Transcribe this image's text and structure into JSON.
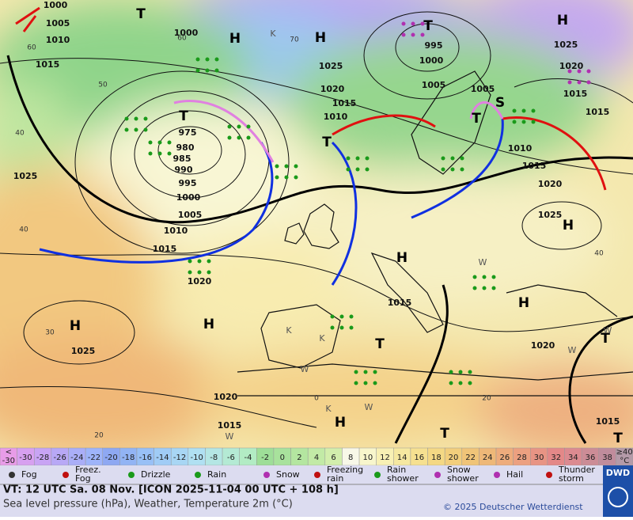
{
  "map": {
    "pressure_labels": [
      "1000",
      "1005",
      "1010",
      "1015",
      "1000",
      "1025",
      "995",
      "1000",
      "1005",
      "1020",
      "1015",
      "1010",
      "1005",
      "1025",
      "1020",
      "1015",
      "1015",
      "975",
      "980",
      "985",
      "990",
      "995",
      "1000",
      "1005",
      "1010",
      "1015",
      "1020",
      "1025",
      "1025",
      "1020",
      "1015",
      "1010",
      "1015",
      "1020",
      "1025",
      "1020",
      "1015",
      "1015"
    ],
    "centers": [
      "T",
      "H",
      "H",
      "T",
      "H",
      "T",
      "T",
      "T",
      "S",
      "H",
      "H",
      "H",
      "H",
      "H",
      "T",
      "T",
      "H",
      "T",
      "T"
    ],
    "isotherm_labels": [
      "60",
      "50",
      "40",
      "40",
      "30",
      "20",
      "40",
      "20",
      "60",
      "70",
      "0"
    ],
    "weather_letters": [
      "K",
      "K",
      "K",
      "K",
      "W",
      "W",
      "W",
      "W",
      "W",
      "W"
    ]
  },
  "temperature_scale": {
    "under_label": [
      "<",
      "-30"
    ],
    "labels": [
      "-30",
      "-28",
      "-26",
      "-24",
      "-22",
      "-20",
      "-18",
      "-16",
      "-14",
      "-12",
      "-10",
      "-8",
      "-6",
      "-4",
      "-2",
      "0",
      "2",
      "4",
      "6",
      "8",
      "10",
      "12",
      "14",
      "16",
      "18",
      "20",
      "22",
      "24",
      "26",
      "28",
      "30",
      "32",
      "34",
      "36",
      "38"
    ],
    "over_label": [
      "≥40",
      "°C"
    ],
    "colors": [
      "#e89ce8",
      "#d7a0f0",
      "#c8a4f4",
      "#b8a8f6",
      "#aaaef8",
      "#9eb4fa",
      "#8ea8f2",
      "#92b4f4",
      "#98c0f6",
      "#a0ccf6",
      "#a8d6f4",
      "#b0e0f2",
      "#b4e6e4",
      "#b4ead4",
      "#b2ecc4",
      "#9ede98",
      "#a8e29c",
      "#b4e6a0",
      "#c2eaa6",
      "#d2eeac",
      "#f8f8e8",
      "#f8f6cc",
      "#f8f0b4",
      "#f6e8a0",
      "#f6e090",
      "#f4d884",
      "#f2ce7c",
      "#f0c478",
      "#eeb878",
      "#eeac7c",
      "#eca080",
      "#e89484",
      "#e48888",
      "#dc8a90",
      "#cc8c96",
      "#c08c9c",
      "#b49aa8"
    ]
  },
  "legend": [
    {
      "lines": [
        "Fog"
      ]
    },
    {
      "lines": [
        "Freez.",
        "Fog"
      ]
    },
    {
      "lines": [
        "Drizzle"
      ]
    },
    {
      "lines": [
        "Rain"
      ]
    },
    {
      "lines": [
        "Snow"
      ]
    },
    {
      "lines": [
        "Freezing",
        "rain"
      ]
    },
    {
      "lines": [
        "Rain",
        "shower"
      ]
    },
    {
      "lines": [
        "Snow",
        "shower"
      ]
    },
    {
      "lines": [
        "Hail"
      ]
    },
    {
      "lines": [
        "Thunder",
        "storm"
      ]
    }
  ],
  "info": {
    "valid_time": "VT: 12 UTC Sa.  08 Nov. [ICON 2025-11-04  00 UTC + 108 h]",
    "description": "Sea level pressure (hPa), Weather, Temperature 2m (°C)",
    "copyright": "© 2025 Deutscher Wetterdienst",
    "logo": "DWD"
  }
}
